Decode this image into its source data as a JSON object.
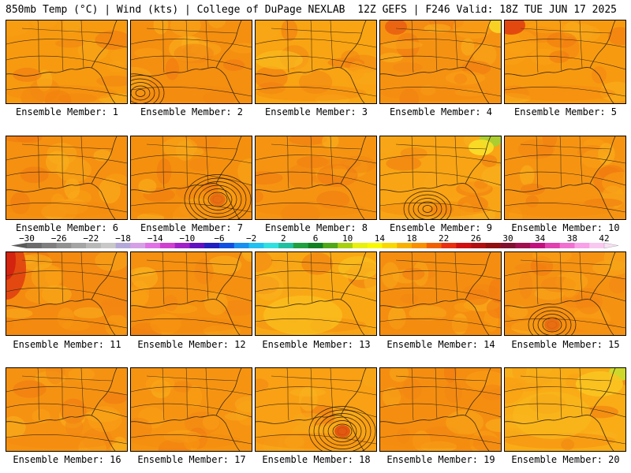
{
  "header": {
    "left": "850mb Temp (°C) | Wind (kts) | College of DuPage NEXLAB",
    "right": "12Z GEFS | F246 Valid: 18Z TUE JUN 17 2025"
  },
  "panel_label_prefix": "Ensemble Member: ",
  "members": [
    {
      "label": "Ensemble Member: 1",
      "base": "#f79a10",
      "low": null
    },
    {
      "label": "Ensemble Member: 2",
      "base": "#f58f10",
      "low": "west"
    },
    {
      "label": "Ensemble Member: 3",
      "base": "#f9a412",
      "low": null
    },
    {
      "label": "Ensemble Member: 4",
      "base": "#f69212",
      "low": null
    },
    {
      "label": "Ensemble Member: 5",
      "base": "#f89a10",
      "low": null
    },
    {
      "label": "Ensemble Member: 6",
      "base": "#f69010",
      "low": null
    },
    {
      "label": "Ensemble Member: 7",
      "base": "#f5900e",
      "low": "gulf-center"
    },
    {
      "label": "Ensemble Member: 8",
      "base": "#f69412",
      "low": null
    },
    {
      "label": "Ensemble Member: 9",
      "base": "#f8a414",
      "low": "gulf-west"
    },
    {
      "label": "Ensemble Member: 10",
      "base": "#f69412",
      "low": null
    },
    {
      "label": "Ensemble Member: 11",
      "base": "#f48a10",
      "low": null
    },
    {
      "label": "Ensemble Member: 12",
      "base": "#f59010",
      "low": null
    },
    {
      "label": "Ensemble Member: 13",
      "base": "#f9a814",
      "low": null
    },
    {
      "label": "Ensemble Member: 14",
      "base": "#f58e10",
      "low": null
    },
    {
      "label": "Ensemble Member: 15",
      "base": "#f69212",
      "low": "gulf-west"
    },
    {
      "label": "Ensemble Member: 16",
      "base": "#f69212",
      "low": null
    },
    {
      "label": "Ensemble Member: 17",
      "base": "#f69412",
      "low": null
    },
    {
      "label": "Ensemble Member: 18",
      "base": "#f9a014",
      "low": "gulf-center"
    },
    {
      "label": "Ensemble Member: 19",
      "base": "#f58e10",
      "low": null
    },
    {
      "label": "Ensemble Member: 20",
      "base": "#f9ac16",
      "low": null
    }
  ],
  "colorbar": {
    "labels": [
      "−30",
      "−26",
      "−22",
      "−18",
      "−14",
      "−10",
      "−6",
      "−2",
      "2",
      "6",
      "10",
      "14",
      "18",
      "22",
      "26",
      "30",
      "34",
      "38",
      "42"
    ],
    "colors": [
      "#6b6b6b",
      "#7e7e7e",
      "#919191",
      "#a4a4a4",
      "#b8b8b8",
      "#c8c8c8",
      "#b4a8d8",
      "#d6a0e6",
      "#e070e6",
      "#d040d0",
      "#a020c8",
      "#6010c0",
      "#2020c0",
      "#1050e0",
      "#1890f0",
      "#20c0f0",
      "#30e0e0",
      "#20c0a0",
      "#20a040",
      "#108020",
      "#50a818",
      "#a8d010",
      "#e8f010",
      "#f8f800",
      "#f8d800",
      "#f8b000",
      "#f89000",
      "#f06000",
      "#e83010",
      "#d01010",
      "#b01010",
      "#901010",
      "#801030",
      "#a01050",
      "#c01080",
      "#e040b0",
      "#f070d0",
      "#f8a0e8",
      "#f8c8f0"
    ]
  }
}
